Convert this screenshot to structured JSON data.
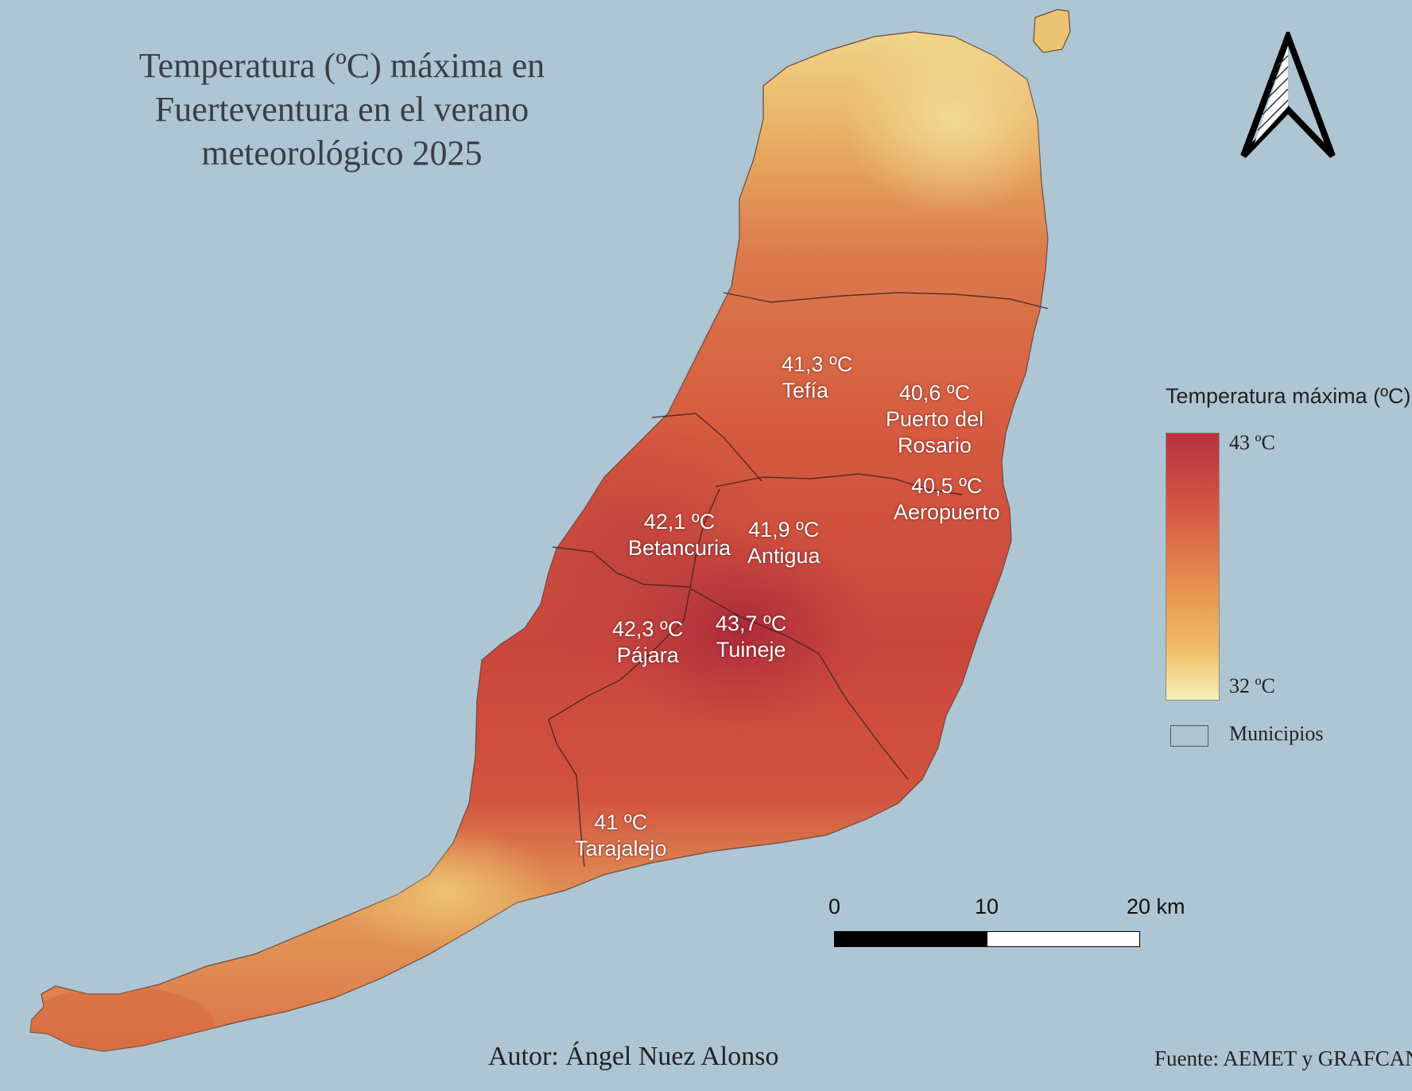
{
  "title": {
    "line1": "Temperatura (ºC) máxima en",
    "line2": "Fuerteventura en el verano",
    "line3": "meteorológico 2025"
  },
  "stations": [
    {
      "value": "41,3 ºC",
      "name": "Tefía"
    },
    {
      "value": "40,6 ºC",
      "name": "Puerto del",
      "name2": "Rosario"
    },
    {
      "value": "40,5 ºC",
      "name": "Aeropuerto"
    },
    {
      "value": "42,1 ºC",
      "name": "Betancuria"
    },
    {
      "value": "41,9 ºC",
      "name": "Antigua"
    },
    {
      "value": "42,3 ºC",
      "name": "Pájara"
    },
    {
      "value": "43,7 ºC",
      "name": "Tuineje"
    },
    {
      "value": "41 ºC",
      "name": "Tarajalejo"
    }
  ],
  "legend": {
    "title": "Temperatura máxima (ºC)",
    "max_label": "43 ºC",
    "min_label": "32 ºC",
    "municipalities_label": "Municipios",
    "ramp_colors": [
      "#b5313d",
      "#d65a45",
      "#e8954f",
      "#f0c06a",
      "#f4f1b8"
    ]
  },
  "scale_bar": {
    "labels": [
      "0",
      "10",
      "20 km"
    ]
  },
  "footer": {
    "author": "Autor: Ángel Nuez Alonso",
    "source": "Fuente: AEMET y GRAFCAN"
  },
  "colors": {
    "sea": "#aec5d3",
    "land_hot": "#c94a3e",
    "land_mid": "#d96f48",
    "land_warm": "#e7a35a",
    "land_cool": "#efd58a"
  },
  "icons": {
    "north_arrow": "north-arrow-icon"
  }
}
